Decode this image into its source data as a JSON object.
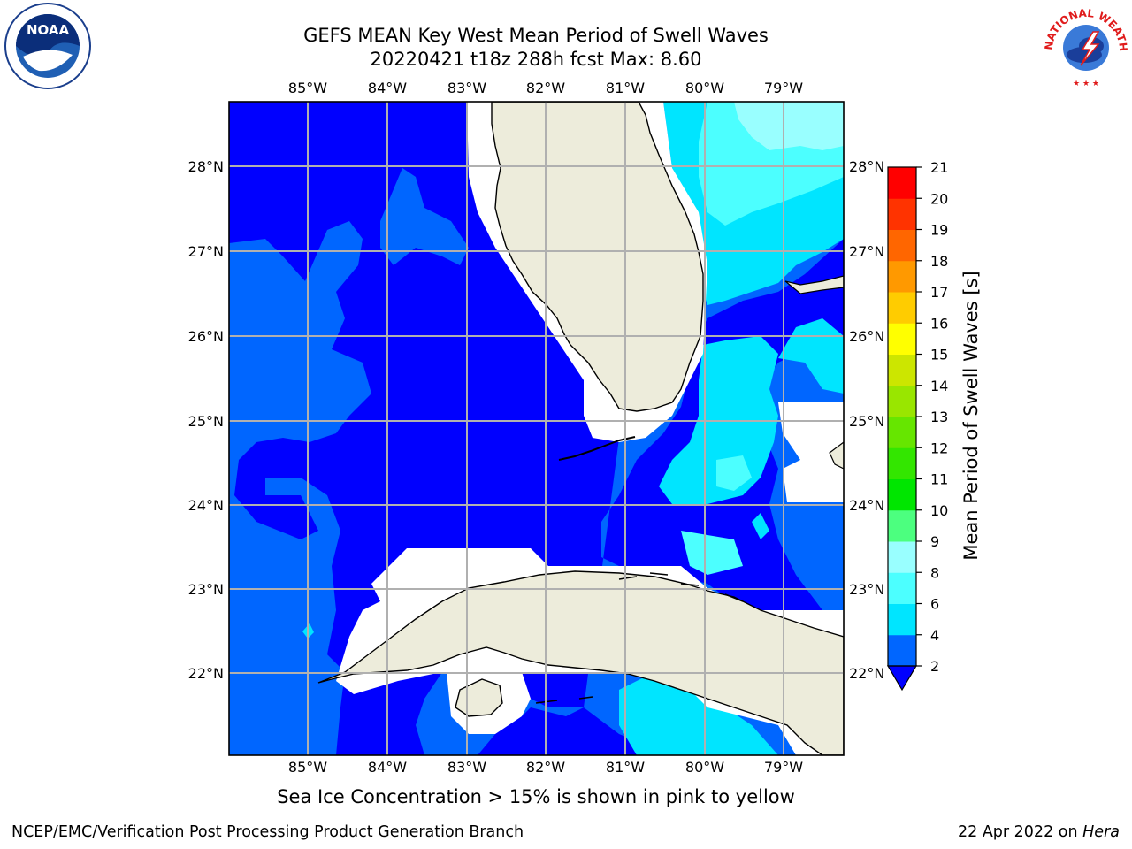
{
  "title": {
    "line1": "GEFS MEAN Key West Mean Period of Swell Waves",
    "line2": "20220421 t18z 288h fcst   Max: 8.60"
  },
  "map": {
    "lon_labels": [
      "85°W",
      "84°W",
      "83°W",
      "82°W",
      "81°W",
      "80°W",
      "79°W"
    ],
    "lat_labels": [
      "28°N",
      "27°N",
      "26°N",
      "25°N",
      "24°N",
      "23°N",
      "22°N"
    ],
    "extent": {
      "lon_min": -86.0,
      "lon_max": -78.25,
      "lat_min": 21.0,
      "lat_max": 28.75
    },
    "land_color": "#edecdb",
    "grid_color": "#b0b0b0"
  },
  "colorbar": {
    "label": "Mean Period of Swell Waves [s]",
    "ticks": [
      "2",
      "4",
      "6",
      "8",
      "9",
      "10",
      "11",
      "12",
      "13",
      "14",
      "15",
      "16",
      "17",
      "18",
      "19",
      "20",
      "21"
    ],
    "colors": [
      "#0000ff",
      "#0066ff",
      "#00e5ff",
      "#4cffff",
      "#99ffff",
      "#4cff7f",
      "#00e600",
      "#33e600",
      "#66e600",
      "#99e600",
      "#cce600",
      "#ffff00",
      "#ffcc00",
      "#ff9900",
      "#ff6600",
      "#ff3300",
      "#ff0000"
    ],
    "extend": "min"
  },
  "annotation": "Sea Ice Concentration > 15% is shown in pink to yellow",
  "footer": {
    "left": "NCEP/EMC/Verification Post Processing Product Generation Branch",
    "right_prefix": "22 Apr 2022 on ",
    "right_host": "Hera"
  },
  "logos": {
    "noaa": "NOAA",
    "nws": "NATIONAL WEATHER SERVICE"
  }
}
